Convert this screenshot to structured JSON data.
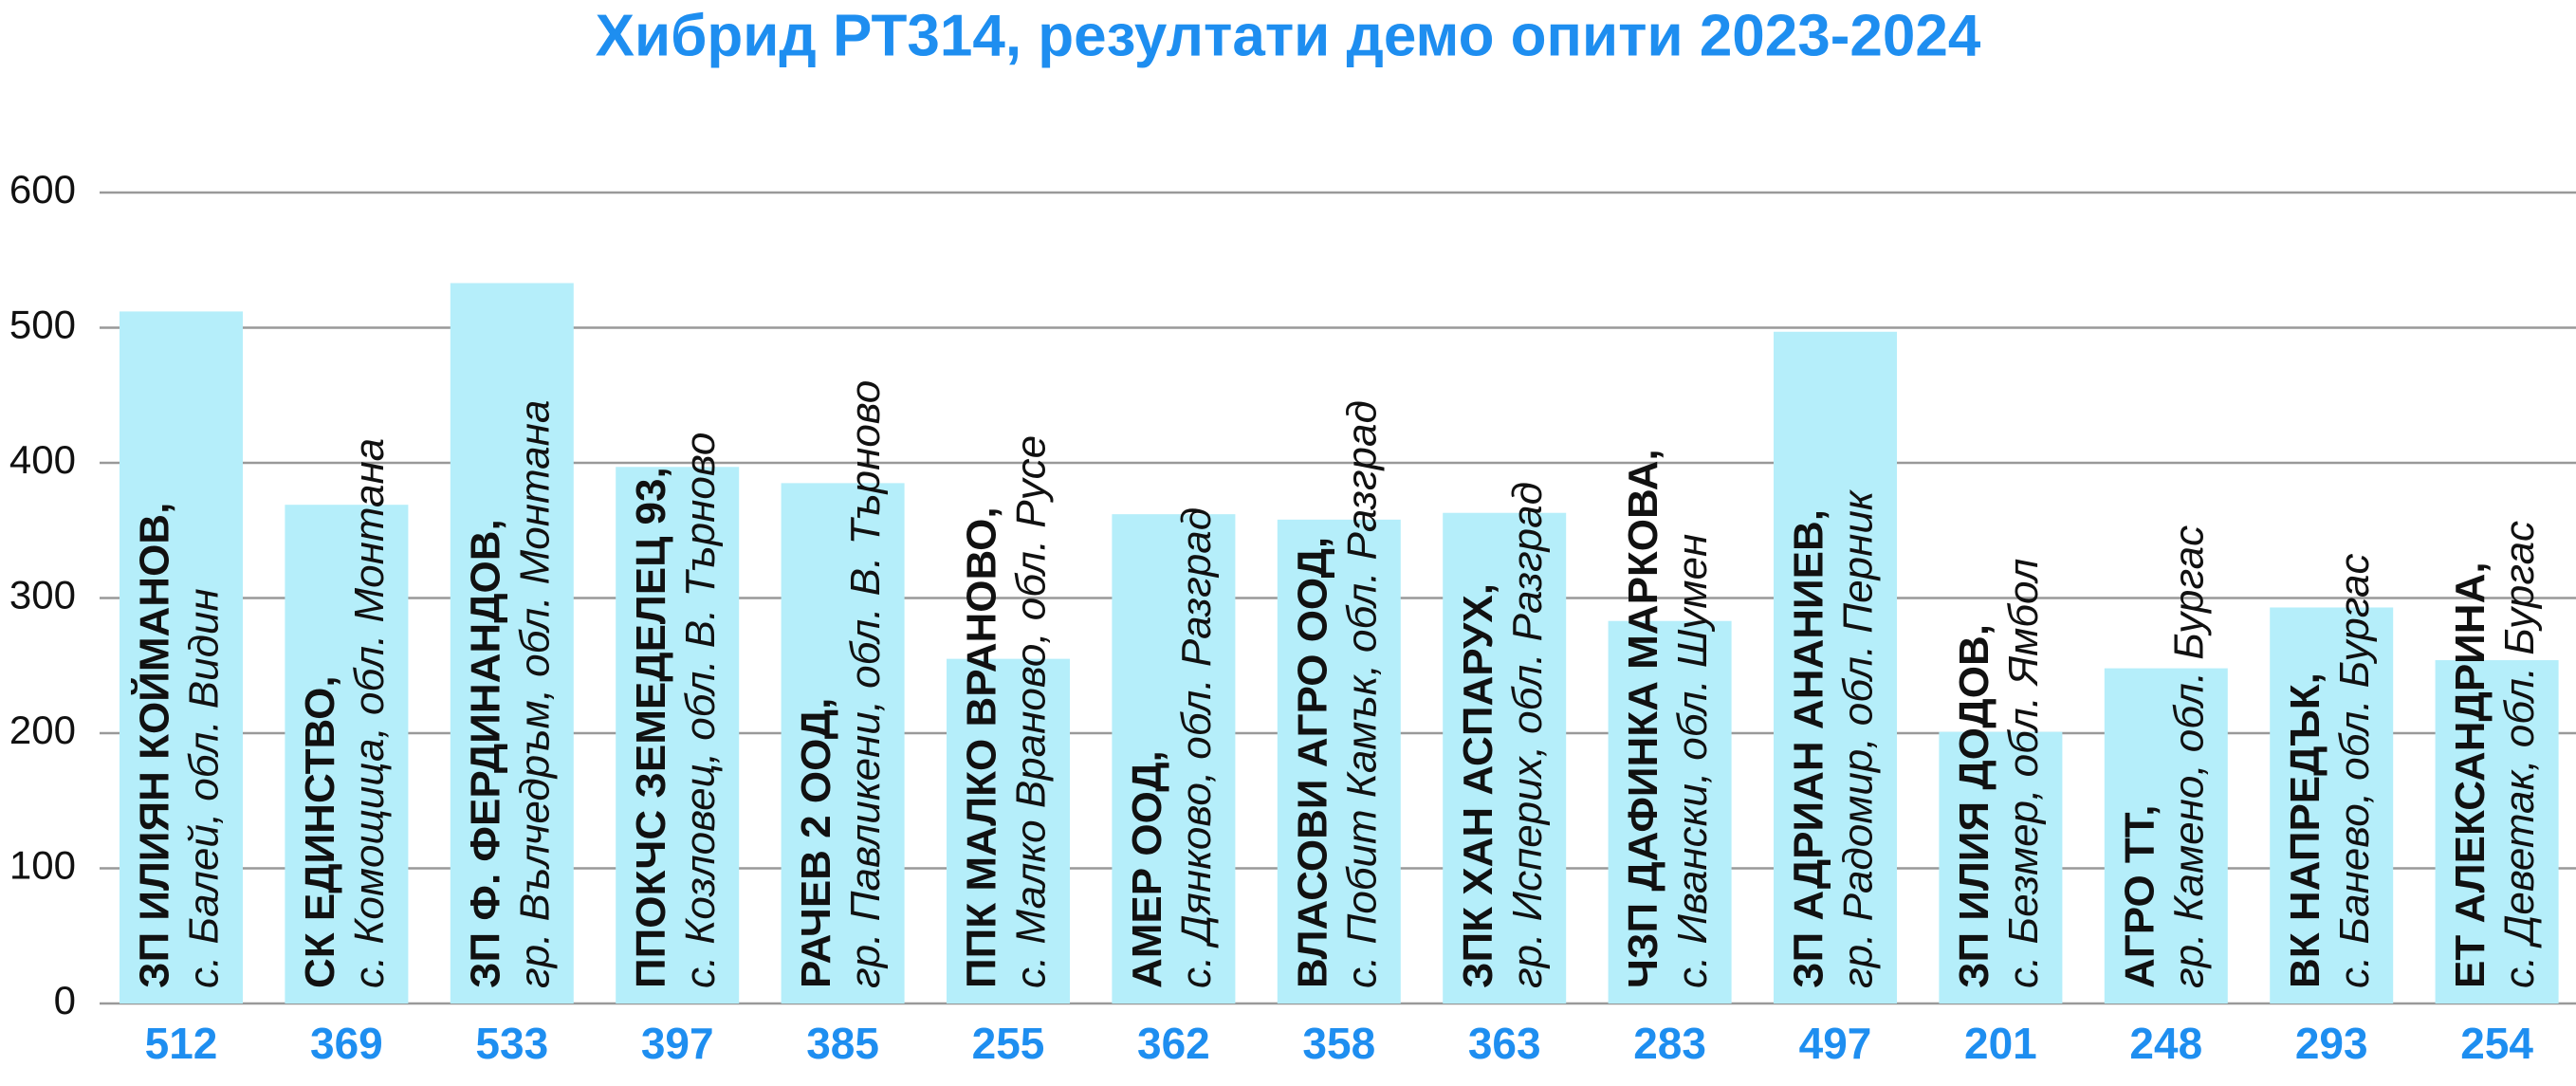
{
  "chart_data": {
    "type": "bar",
    "title": "Хибрид РТ314, резултати демо опити 2023-2024",
    "categories": [
      "ЗП ИЛИЯН КОЙМАНОВ,",
      "СК ЕДИНСТВО,",
      "ЗП Ф. ФЕРДИНАНДОВ,",
      "ППОКЧС ЗЕМЕДЕЛЕЦ 93,",
      "РАЧЕВ 2 ООД,",
      "ППК МАЛКО ВРАНОВО,",
      "АМЕР ООД,",
      "ВЛАСОВИ АГРО ООД,",
      "ЗПК ХАН АСПАРУХ,",
      "ЧЗП ДАФИНКА МАРКОВА,",
      "ЗП АДРИАН АНАНИЕВ,",
      "ЗП ИЛИЯ ДОДОВ,",
      "АГРО ТТ,",
      "ВК НАПРЕДЪК,",
      "ЕТ АЛЕКСАНДРИНА,"
    ],
    "category_locations": [
      "с. Балей, обл. Видин",
      "с. Комощица, обл. Монтана",
      "гр. Вълчедръм, обл. Монтана",
      "с. Козловец, обл. В. Търново",
      "гр. Павликени, обл. В. Търново",
      "с. Малко Враново, обл. Русе",
      "с. Дянково, обл. Разград",
      "с. Побит Камък, обл. Разград",
      "гр. Исперих, обл. Разград",
      "с. Ивански, обл. Шумен",
      "гр. Радомир, обл. Перник",
      "с. Безмер, обл. Ямбол",
      "гр. Камено, обл. Бургас",
      "с. Банево, обл. Бургас",
      "с. Деветак, обл. Бургас"
    ],
    "values": [
      512,
      369,
      533,
      397,
      385,
      255,
      362,
      358,
      363,
      283,
      497,
      201,
      248,
      293,
      254
    ],
    "color": "#b5eefa",
    "ylim": [
      0,
      600
    ],
    "yticks": [
      0,
      100,
      200,
      300,
      400,
      500,
      600
    ],
    "grid": true
  }
}
